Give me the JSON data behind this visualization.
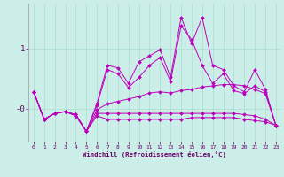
{
  "background_color": "#cceee8",
  "line_color": "#bb00bb",
  "grid_color": "#aaddcc",
  "xlim": [
    -0.5,
    23.5
  ],
  "ylim": [
    -0.55,
    1.75
  ],
  "yticks": [
    0.0,
    1.0
  ],
  "ytick_labels": [
    "-0",
    "1"
  ],
  "xticks": [
    0,
    1,
    2,
    3,
    4,
    5,
    6,
    7,
    8,
    9,
    10,
    11,
    12,
    13,
    14,
    15,
    16,
    17,
    18,
    19,
    20,
    21,
    22,
    23
  ],
  "xlabel": "Windchill (Refroidissement éolien,°C)",
  "series": [
    [
      0.28,
      -0.18,
      -0.08,
      -0.05,
      -0.12,
      -0.38,
      0.08,
      0.72,
      0.68,
      0.42,
      0.78,
      0.88,
      0.98,
      0.52,
      1.52,
      1.08,
      1.52,
      0.72,
      0.65,
      0.38,
      0.28,
      0.65,
      0.32,
      -0.28
    ],
    [
      0.28,
      -0.18,
      -0.08,
      -0.05,
      -0.12,
      -0.38,
      0.05,
      0.65,
      0.58,
      0.35,
      0.52,
      0.72,
      0.85,
      0.45,
      1.38,
      1.15,
      0.72,
      0.42,
      0.58,
      0.3,
      0.25,
      0.38,
      0.28,
      -0.28
    ],
    [
      0.28,
      -0.18,
      -0.08,
      -0.05,
      -0.1,
      -0.38,
      -0.02,
      0.08,
      0.12,
      0.16,
      0.2,
      0.26,
      0.28,
      0.26,
      0.3,
      0.32,
      0.36,
      0.38,
      0.4,
      0.4,
      0.38,
      0.32,
      0.25,
      -0.28
    ],
    [
      0.28,
      -0.18,
      -0.08,
      -0.05,
      -0.1,
      -0.38,
      -0.08,
      -0.08,
      -0.08,
      -0.08,
      -0.08,
      -0.08,
      -0.08,
      -0.08,
      -0.08,
      -0.08,
      -0.08,
      -0.08,
      -0.08,
      -0.08,
      -0.1,
      -0.12,
      -0.18,
      -0.28
    ],
    [
      0.28,
      -0.18,
      -0.08,
      -0.05,
      -0.1,
      -0.38,
      -0.12,
      -0.18,
      -0.18,
      -0.18,
      -0.18,
      -0.18,
      -0.18,
      -0.18,
      -0.18,
      -0.15,
      -0.15,
      -0.15,
      -0.15,
      -0.15,
      -0.18,
      -0.2,
      -0.22,
      -0.28
    ]
  ]
}
